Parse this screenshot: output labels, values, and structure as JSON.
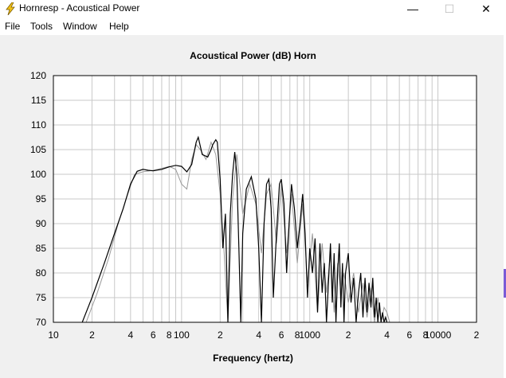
{
  "window": {
    "title": "Hornresp - Acoustical Power",
    "controls": {
      "minimize": "—",
      "maximize": "☐",
      "close": "✕"
    }
  },
  "menu": [
    "File",
    "Tools",
    "Window",
    "Help"
  ],
  "colors": {
    "background": "#f0f0f0",
    "plot_bg": "#ffffff",
    "grid": "#c8c8c8",
    "trace": "#000000",
    "trace_alt": "#9a9a9a"
  },
  "chart_data": {
    "type": "line",
    "title": "Acoustical Power (dB)   Horn",
    "xlabel": "Frequency (hertz)",
    "ylabel": "",
    "xscale": "log",
    "xlim": [
      10,
      20000
    ],
    "ylim": [
      70,
      120
    ],
    "grid": true,
    "yticks": [
      120,
      115,
      110,
      105,
      100,
      95,
      90,
      85,
      80,
      75,
      70
    ],
    "xticks": [
      {
        "v": 10,
        "label": "10"
      },
      {
        "v": 20,
        "label": "2"
      },
      {
        "v": 40,
        "label": "4"
      },
      {
        "v": 60,
        "label": "6"
      },
      {
        "v": 80,
        "label": "8"
      },
      {
        "v": 100,
        "label": "100"
      },
      {
        "v": 200,
        "label": "2"
      },
      {
        "v": 400,
        "label": "4"
      },
      {
        "v": 600,
        "label": "6"
      },
      {
        "v": 800,
        "label": "8"
      },
      {
        "v": 1000,
        "label": "1000"
      },
      {
        "v": 2000,
        "label": "2"
      },
      {
        "v": 4000,
        "label": "4"
      },
      {
        "v": 6000,
        "label": "6"
      },
      {
        "v": 8000,
        "label": "8"
      },
      {
        "v": 10000,
        "label": "10000"
      },
      {
        "v": 20000,
        "label": "2"
      }
    ],
    "series": [
      {
        "color": "#000000",
        "x": [
          16.8,
          20,
          25,
          30,
          35,
          40,
          45,
          50,
          55,
          60,
          70,
          80,
          90,
          100,
          110,
          120,
          130,
          135,
          145,
          160,
          170,
          175,
          185,
          190,
          200,
          210,
          220,
          230,
          240,
          250,
          260,
          270,
          280,
          290,
          300,
          320,
          350,
          380,
          400,
          420,
          440,
          460,
          480,
          500,
          520,
          550,
          580,
          600,
          630,
          660,
          690,
          720,
          760,
          800,
          840,
          880,
          920,
          960,
          1000,
          1050,
          1100,
          1150,
          1200,
          1250,
          1300,
          1350,
          1400,
          1450,
          1500,
          1550,
          1600,
          1650,
          1700,
          1750,
          1800,
          1850,
          1900,
          2000,
          2100,
          2200,
          2300,
          2400,
          2500,
          2600,
          2700,
          2800,
          2900,
          3000,
          3100,
          3200,
          3300,
          3400,
          3500,
          3600,
          3700,
          3800,
          3900,
          4000
        ],
        "y": [
          70,
          75,
          82,
          88,
          93,
          98,
          100.6,
          101,
          100.8,
          100.7,
          101,
          101.5,
          101.8,
          101.6,
          100.5,
          102,
          106.5,
          107.5,
          104,
          103.5,
          105,
          106,
          107,
          106.5,
          99,
          85,
          92,
          70,
          92,
          100,
          104.5,
          100,
          85,
          70,
          88,
          97,
          99.5,
          95,
          85,
          70,
          90,
          98,
          99,
          93,
          75,
          88,
          98,
          99,
          94,
          80,
          90,
          98,
          93,
          85,
          90,
          96,
          88,
          75,
          85,
          80,
          87,
          72,
          86,
          76,
          82,
          70,
          78,
          86,
          74,
          84,
          70,
          80,
          86,
          73,
          82,
          70,
          80,
          84,
          74,
          79,
          70,
          76,
          80,
          71,
          79,
          72,
          78,
          73,
          79,
          71,
          75,
          70,
          74,
          70,
          72,
          70,
          71,
          70
        ]
      },
      {
        "color": "#9a9a9a",
        "x": [
          18,
          22,
          27,
          32,
          38,
          43,
          50,
          60,
          70,
          80,
          90,
          100,
          110,
          120,
          130,
          140,
          155,
          170,
          185,
          200,
          215,
          230,
          250,
          270,
          300,
          340,
          380,
          420,
          460,
          500,
          550,
          600,
          660,
          720,
          800,
          880,
          960,
          1050,
          1150,
          1250,
          1350,
          1450,
          1550,
          1650,
          1750,
          1850,
          2000,
          2200,
          2400,
          2600,
          2800,
          3000,
          3200,
          3400,
          3600,
          3800,
          4000,
          4200
        ],
        "y": [
          70,
          76,
          83,
          90,
          96,
          100,
          100.5,
          100.8,
          101.2,
          101.6,
          101,
          98,
          97,
          103,
          106,
          105,
          103,
          106.5,
          104,
          96,
          84,
          70,
          95,
          104,
          92,
          98,
          94,
          84,
          96,
          98,
          86,
          98,
          84,
          96,
          82,
          94,
          78,
          88,
          72,
          86,
          76,
          84,
          72,
          82,
          76,
          80,
          74,
          80,
          72,
          78,
          71,
          77,
          70,
          75,
          70,
          73,
          72,
          70
        ]
      }
    ]
  }
}
